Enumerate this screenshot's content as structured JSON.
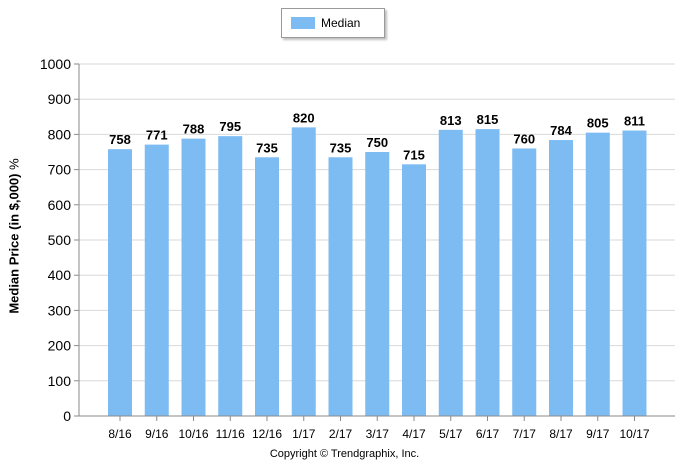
{
  "chart_data": {
    "type": "bar",
    "categories": [
      "8/16",
      "9/16",
      "10/16",
      "11/16",
      "12/16",
      "1/17",
      "2/17",
      "3/17",
      "4/17",
      "5/17",
      "6/17",
      "7/17",
      "8/17",
      "9/17",
      "10/17"
    ],
    "series": [
      {
        "name": "Median",
        "values": [
          758,
          771,
          788,
          795,
          735,
          820,
          735,
          750,
          715,
          813,
          815,
          760,
          784,
          805,
          811
        ]
      }
    ],
    "ylabel": "Median Price (in $,000)",
    "ylabel_suffix": "%",
    "xlabel": "",
    "ylim": [
      0,
      1000
    ],
    "yticks": [
      0,
      100,
      200,
      300,
      400,
      500,
      600,
      700,
      800,
      900,
      1000
    ],
    "grid": true,
    "legend_position": "top-center",
    "bar_color": "#7cbcf3",
    "grid_color": "#d9d9d9",
    "axis_color": "#8a8a8a"
  },
  "legend": {
    "label": "Median"
  },
  "footer": {
    "copyright": "Copyright © Trendgraphix, Inc."
  }
}
